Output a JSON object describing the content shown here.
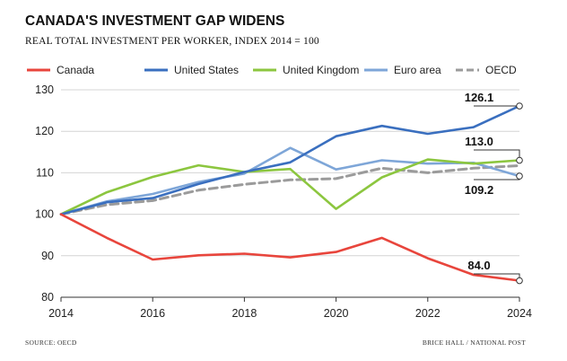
{
  "chart_data": {
    "type": "line",
    "title": "CANADA'S INVESTMENT GAP WIDENS",
    "subtitle": "REAL TOTAL INVESTMENT PER WORKER, INDEX 2014 = 100",
    "x": [
      2014,
      2015,
      2016,
      2017,
      2018,
      2019,
      2020,
      2021,
      2022,
      2023,
      2024
    ],
    "x_ticks": [
      "2014",
      "2016",
      "2018",
      "2020",
      "2022",
      "2024"
    ],
    "y_ticks": [
      "80",
      "90",
      "100",
      "110",
      "120",
      "130"
    ],
    "xlim": [
      2014,
      2024
    ],
    "ylim": [
      80,
      130
    ],
    "grid": true,
    "legend_placement": "top",
    "series": [
      {
        "name": "Canada",
        "color": "#e8453c",
        "dashed": false,
        "values": [
          100,
          94.3,
          89.1,
          90.1,
          90.5,
          89.6,
          90.9,
          94.3,
          89.4,
          85.4,
          84.0
        ]
      },
      {
        "name": "United States",
        "color": "#3a6fbf",
        "dashed": false,
        "values": [
          100,
          102.9,
          103.9,
          107.3,
          110.2,
          112.5,
          118.8,
          121.3,
          119.4,
          121.0,
          126.1
        ]
      },
      {
        "name": "United Kingdom",
        "color": "#8cc63f",
        "dashed": false,
        "values": [
          100,
          105.3,
          109.0,
          111.8,
          110.2,
          110.9,
          101.3,
          108.9,
          113.2,
          112.2,
          113.0
        ]
      },
      {
        "name": "Euro area",
        "color": "#7ea6d8",
        "dashed": false,
        "values": [
          100,
          103.1,
          104.9,
          107.8,
          109.8,
          116.0,
          110.8,
          113.0,
          112.2,
          112.4,
          109.2
        ]
      },
      {
        "name": "OECD",
        "color": "#9b9b9b",
        "dashed": true,
        "values": [
          100,
          102.3,
          103.3,
          105.8,
          107.2,
          108.3,
          108.6,
          111.1,
          110.0,
          111.1,
          111.7
        ]
      }
    ],
    "end_labels": [
      {
        "series": "United States",
        "text": "126.1"
      },
      {
        "series": "United Kingdom",
        "text": "113.0"
      },
      {
        "series": "Euro area",
        "text": "109.2"
      },
      {
        "series": "Canada",
        "text": "84.0"
      }
    ],
    "source": "SOURCE: OECD",
    "credit": "BRICE HALL / NATIONAL POST"
  }
}
